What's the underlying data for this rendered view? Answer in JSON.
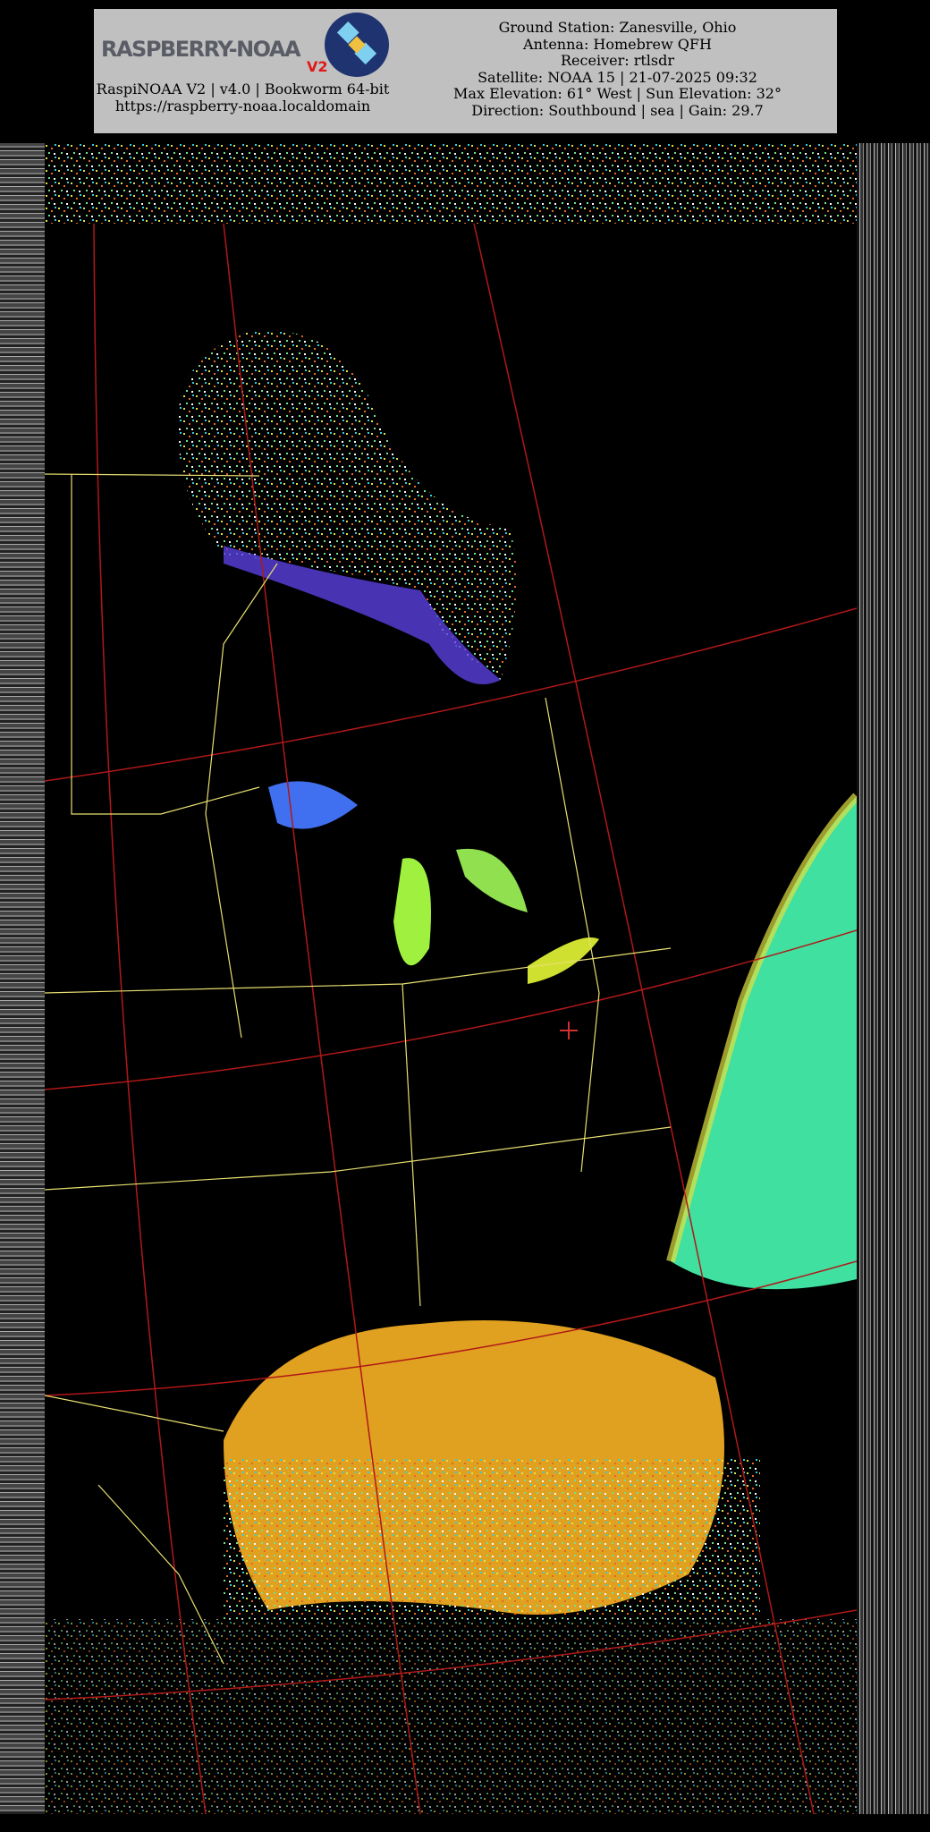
{
  "header": {
    "logo_text": "RASPBERRY-NOAA",
    "logo_badge": "V2",
    "app_info": "RaspiNOAA V2 | v4.0 | Bookworm 64-bit",
    "url": "https://raspberry-noaa.localdomain",
    "ground_station": "Ground Station: Zanesville, Ohio",
    "antenna": "Antenna: Homebrew QFH",
    "receiver": "Receiver: rtlsdr",
    "satellite": "Satellite: NOAA 15 | 21-07-2025 09:32",
    "elevation": "Max Elevation: 61° West | Sun Elevation: 32°",
    "direction": "Direction: Southbound | sea | Gain: 29.7"
  },
  "image": {
    "type": "APT sea surface temperature composite",
    "colors": {
      "background": "#000000",
      "borders": "#e8e070",
      "grid": "#b01818",
      "coast": "#90e890",
      "warm": "#e89020",
      "cold": "#5040e0"
    }
  }
}
